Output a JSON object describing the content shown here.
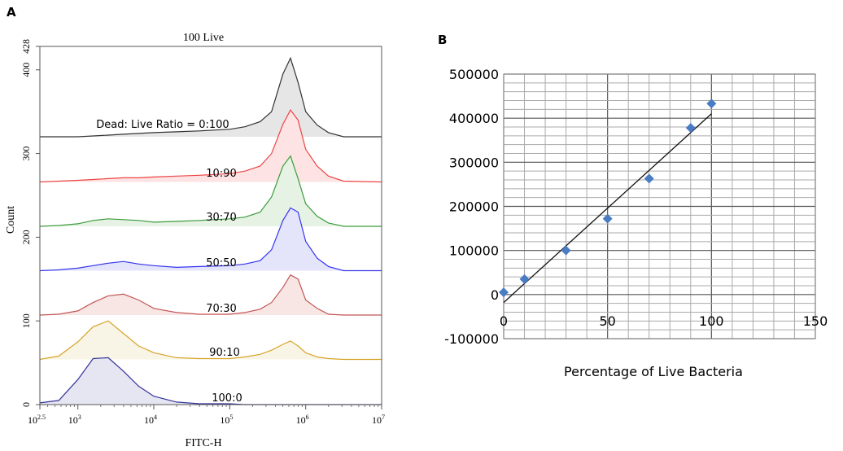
{
  "chart_data": [
    {
      "panel_label": "A",
      "type": "area",
      "title": "100 Live",
      "xlabel": "FITC-H",
      "ylabel": "Count",
      "xscale": "log",
      "xlim": [
        316,
        10000000
      ],
      "ylim": [
        0,
        428
      ],
      "xticks": [
        {
          "base": "10",
          "exp": "2.5"
        },
        {
          "base": "10",
          "exp": "3"
        },
        {
          "base": "10",
          "exp": "4"
        },
        {
          "base": "10",
          "exp": "5"
        },
        {
          "base": "10",
          "exp": "6"
        },
        {
          "base": "10",
          "exp": "7"
        }
      ],
      "yticks": [
        0,
        100,
        200,
        300,
        400,
        428
      ],
      "x": [
        316,
        562,
        1000,
        1585,
        2512,
        3981,
        6310,
        10000,
        19953,
        39811,
        100000,
        158489,
        251189,
        354813,
        501187,
        630957,
        794328,
        1000000,
        1412538,
        1995262,
        3162278,
        10000000
      ],
      "series": [
        {
          "label": "Dead: Live Ratio = 0:100",
          "color": "#333333",
          "fill": "#e6e6e6",
          "values": [
            320,
            320,
            320,
            321,
            322,
            323,
            324,
            325,
            326,
            327,
            329,
            332,
            338,
            350,
            395,
            414,
            385,
            350,
            334,
            325,
            320,
            320
          ]
        },
        {
          "label": "10:90",
          "color": "#ee4444",
          "fill": "#fde3e3",
          "values": [
            266,
            267,
            268,
            269,
            270,
            271,
            271,
            272,
            273,
            274,
            276,
            279,
            285,
            300,
            335,
            352,
            340,
            305,
            285,
            273,
            267,
            266
          ]
        },
        {
          "label": "30:70",
          "color": "#3c9c3c",
          "fill": "#e6f2e4",
          "values": [
            213,
            214,
            216,
            220,
            222,
            221,
            220,
            218,
            219,
            220,
            222,
            224,
            230,
            248,
            285,
            297,
            270,
            240,
            225,
            217,
            213,
            213
          ]
        },
        {
          "label": "50:50",
          "color": "#3535ee",
          "fill": "#e4e4fb",
          "values": [
            160,
            161,
            163,
            166,
            169,
            171,
            168,
            166,
            164,
            165,
            166,
            168,
            172,
            185,
            220,
            235,
            230,
            195,
            175,
            165,
            160,
            160
          ]
        },
        {
          "label": "70:30",
          "color": "#c45555",
          "fill": "#f7e6e4",
          "values": [
            107,
            108,
            112,
            122,
            130,
            132,
            125,
            115,
            110,
            108,
            108,
            110,
            114,
            122,
            140,
            155,
            150,
            125,
            115,
            108,
            107,
            107
          ]
        },
        {
          "label": "90:10",
          "color": "#d6a428",
          "fill": "#f9f5e6",
          "values": [
            54,
            58,
            75,
            93,
            100,
            85,
            70,
            62,
            56,
            55,
            55,
            57,
            60,
            65,
            72,
            76,
            70,
            62,
            57,
            55,
            54,
            54
          ]
        },
        {
          "label": "100:0",
          "color": "#33339a",
          "fill": "#e6e6f2",
          "values": [
            2,
            5,
            30,
            55,
            56,
            40,
            22,
            10,
            3,
            1,
            1,
            0,
            0,
            0,
            0,
            0,
            0,
            0,
            0,
            0,
            0,
            0
          ]
        }
      ],
      "grid": false
    },
    {
      "panel_label": "B",
      "type": "scatter",
      "xlabel": "Percentage of Live Bacteria",
      "ylabel": "",
      "xlim": [
        0,
        150
      ],
      "ylim": [
        -100000,
        500000
      ],
      "xticks": [
        0,
        50,
        100,
        150
      ],
      "yticks": [
        500000,
        400000,
        300000,
        200000,
        100000,
        0,
        -100000
      ],
      "points": [
        [
          0,
          5000
        ],
        [
          10,
          35000
        ],
        [
          30,
          100000
        ],
        [
          50,
          172000
        ],
        [
          70,
          263000
        ],
        [
          90,
          378000
        ],
        [
          100,
          433000
        ]
      ],
      "trendline": [
        [
          0,
          -18000
        ],
        [
          100,
          410000
        ]
      ],
      "marker_color": "#4a7cc4",
      "grid": true
    }
  ]
}
